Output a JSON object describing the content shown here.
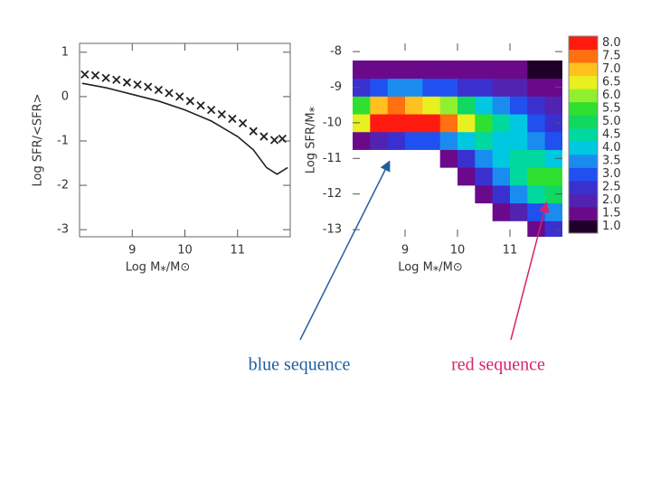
{
  "chart_data": [
    {
      "type": "line",
      "ylabel": "Log SFR/<SFR>",
      "xlabel": "Log M⁎/M⊙",
      "xlim": [
        8,
        12
      ],
      "xticks": [
        9,
        10,
        11
      ],
      "ylim": [
        -3.16,
        1.2
      ],
      "yticks": [
        1,
        0,
        -1,
        -2,
        -3
      ],
      "series": [
        {
          "style": "line",
          "color": "#222222",
          "x": [
            8.05,
            8.5,
            9,
            9.5,
            10,
            10.5,
            11,
            11.3,
            11.55,
            11.75,
            11.95
          ],
          "values": [
            0.3,
            0.2,
            0.05,
            -0.1,
            -0.3,
            -0.55,
            -0.9,
            -1.2,
            -1.6,
            -1.75,
            -1.6
          ]
        },
        {
          "style": "x-marker",
          "color": "#222222",
          "x": [
            8.1,
            8.3,
            8.5,
            8.7,
            8.9,
            9.1,
            9.3,
            9.5,
            9.7,
            9.9,
            10.1,
            10.3,
            10.5,
            10.7,
            10.9,
            11.1,
            11.3,
            11.5,
            11.7,
            11.85
          ],
          "values": [
            0.5,
            0.48,
            0.42,
            0.38,
            0.32,
            0.27,
            0.22,
            0.15,
            0.08,
            0.0,
            -0.1,
            -0.2,
            -0.3,
            -0.4,
            -0.5,
            -0.6,
            -0.78,
            -0.9,
            -0.98,
            -0.95
          ]
        }
      ]
    },
    {
      "type": "heatmap",
      "ylabel": "Log SFR/M⁎",
      "xlabel": "Log M⁎/M⊙",
      "xlim": [
        8,
        12
      ],
      "xticks": [
        9,
        10,
        11
      ],
      "ylim": [
        -13.2,
        -7.77
      ],
      "yticks": [
        -8,
        -9,
        -10,
        -11,
        -12,
        -13
      ],
      "xbins": [
        8,
        8.333,
        8.667,
        9,
        9.333,
        9.667,
        10,
        10.333,
        10.667,
        11,
        11.333,
        11.667,
        12
      ],
      "ybins": [
        -13.25,
        -12.75,
        -12.25,
        -11.75,
        -11.25,
        -10.75,
        -10.25,
        -9.75,
        -9.25,
        -8.75,
        -8.25,
        -7.75
      ],
      "values": [
        [
          null,
          null,
          null,
          null,
          null,
          null,
          null,
          null,
          null,
          null,
          1.5,
          2.5
        ],
        [
          null,
          null,
          null,
          null,
          null,
          null,
          null,
          null,
          1.5,
          2.0,
          3.0,
          3.5
        ],
        [
          null,
          null,
          null,
          null,
          null,
          null,
          null,
          1.5,
          2.5,
          3.5,
          4.5,
          5.0
        ],
        [
          null,
          null,
          null,
          null,
          null,
          null,
          1.5,
          2.5,
          3.5,
          4.5,
          5.5,
          5.5
        ],
        [
          null,
          null,
          null,
          null,
          null,
          1.5,
          2.5,
          3.5,
          4.0,
          4.5,
          4.5,
          4.0
        ],
        [
          1.5,
          2.0,
          2.5,
          3.0,
          3.0,
          3.5,
          4.0,
          4.5,
          4.0,
          4.0,
          3.5,
          3.0
        ],
        [
          6.5,
          8.0,
          8.0,
          8.0,
          8.0,
          7.5,
          6.5,
          5.5,
          4.5,
          4.0,
          3.0,
          2.5
        ],
        [
          5.5,
          7.0,
          7.5,
          7.0,
          6.5,
          6.0,
          5.0,
          4.0,
          3.5,
          3.0,
          2.5,
          2.0
        ],
        [
          2.5,
          3.0,
          3.5,
          3.5,
          3.0,
          3.0,
          2.5,
          2.5,
          2.0,
          2.0,
          1.5,
          1.5
        ],
        [
          1.5,
          1.5,
          1.5,
          1.5,
          1.5,
          1.5,
          1.5,
          1.5,
          1.5,
          1.5,
          1.0,
          1.0
        ],
        [
          null,
          null,
          null,
          null,
          null,
          null,
          null,
          null,
          null,
          null,
          null,
          null
        ]
      ],
      "colorbar": {
        "ticks": [
          {
            "value": 1,
            "label": "1.0"
          },
          1.5,
          {
            "value": 2,
            "label": "2.0"
          },
          2.5,
          {
            "value": 3,
            "label": "3.0"
          },
          3.5,
          {
            "value": 4,
            "label": "4.0"
          },
          4.5,
          {
            "value": 5,
            "label": "5.0"
          },
          5.5,
          {
            "value": 6,
            "label": "6.0"
          },
          6.5,
          {
            "value": 7,
            "label": "7.0"
          },
          7.5,
          {
            "value": 8,
            "label": "8.0"
          }
        ],
        "colors": [
          "#200028",
          "#6a0a8a",
          "#5222b0",
          "#3a30d0",
          "#2050f0",
          "#1a8cf0",
          "#00c8e0",
          "#00d8a0",
          "#10d860",
          "#30e030",
          "#90f030",
          "#e8f020",
          "#ffc020",
          "#ff7010",
          "#ff1a10"
        ]
      },
      "annotations": [
        {
          "text": "blue sequence",
          "color": "#1f5fa0"
        },
        {
          "text": "red sequence",
          "color": "#d6246e"
        }
      ]
    }
  ]
}
